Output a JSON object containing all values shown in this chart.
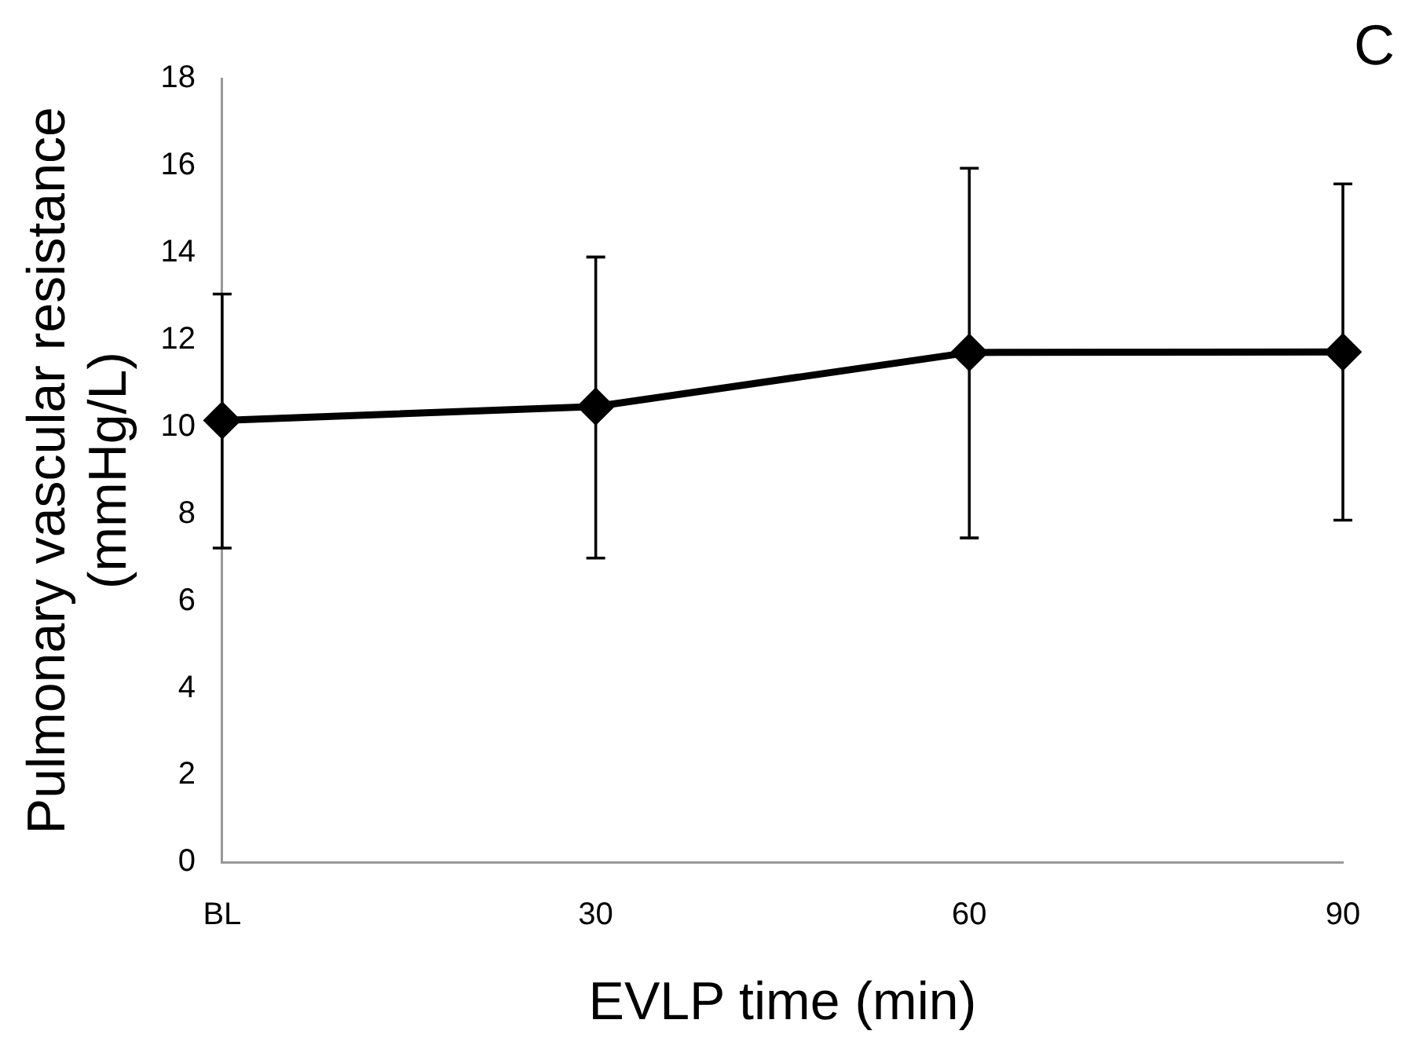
{
  "chart_data": {
    "type": "line",
    "xlabel": "EVLP time (min)",
    "ylabel": "Pulmonary vascular resistance\n(mmHg/L)",
    "annotations": [
      "C"
    ],
    "categories": [
      "BL",
      "30",
      "60",
      "90"
    ],
    "series": [
      {
        "color": "#000000",
        "values": [
          10.15,
          10.47,
          11.71,
          11.72
        ],
        "errors": [
          [
            7.22,
            13.05
          ],
          [
            6.99,
            13.9
          ],
          [
            7.45,
            15.94
          ],
          [
            7.86,
            15.58
          ]
        ]
      }
    ],
    "ylim": [
      0,
      18
    ],
    "yticks": [
      0,
      2,
      4,
      6,
      8,
      10,
      12,
      14,
      16,
      18
    ],
    "grid": false,
    "legend": false,
    "marker": "diamond",
    "line_style": "solid"
  }
}
